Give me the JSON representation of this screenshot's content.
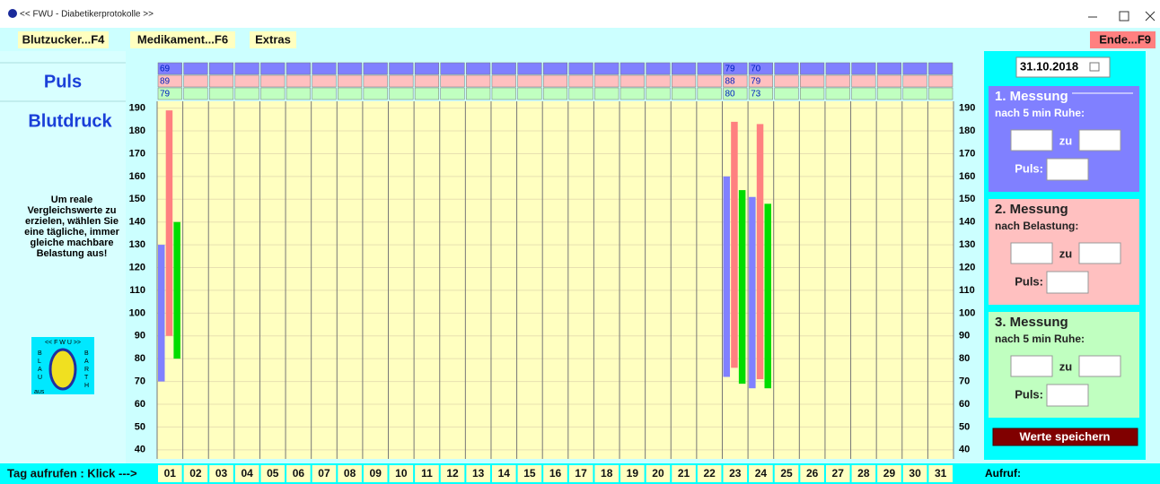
{
  "window": {
    "title": "<< FWU - Diabetikerprotokolle >>"
  },
  "menu": [
    "Blutzucker...F4",
    "Medikament...F6",
    "Extras"
  ],
  "exit_button": "Ende...F9",
  "left_panel": {
    "puls_heading": "Puls",
    "blutdruck_heading": "Blutdruck",
    "hint": [
      "Um reale",
      "Vergleichswerte zu",
      "erzielen, wählen Sie",
      "eine tägliche, immer",
      "gleiche machbare",
      "Belastung aus!"
    ],
    "logo": {
      "top": "<< F W U >>",
      "left": [
        "B",
        "L",
        "A",
        "U"
      ],
      "left_bottom": "aus",
      "right": [
        "B",
        "A",
        "R",
        "T",
        "H"
      ]
    }
  },
  "chart_data": {
    "type": "range-bar",
    "categories": [
      "01",
      "02",
      "03",
      "04",
      "05",
      "06",
      "07",
      "08",
      "09",
      "10",
      "11",
      "12",
      "13",
      "14",
      "15",
      "16",
      "17",
      "18",
      "19",
      "20",
      "21",
      "22",
      "23",
      "24",
      "25",
      "26",
      "27",
      "28",
      "29",
      "30",
      "31"
    ],
    "ylim": [
      36,
      193
    ],
    "yticks": [
      40,
      50,
      60,
      70,
      80,
      90,
      100,
      110,
      120,
      130,
      140,
      150,
      160,
      170,
      180,
      190
    ],
    "grid": true,
    "series": [
      {
        "color": "#8080ff",
        "row_color": "#8080ff",
        "low": [
          70,
          null,
          null,
          null,
          null,
          null,
          null,
          null,
          null,
          null,
          null,
          null,
          null,
          null,
          null,
          null,
          null,
          null,
          null,
          null,
          null,
          null,
          72,
          67,
          null,
          null,
          null,
          null,
          null,
          null,
          null
        ],
        "high": [
          130,
          null,
          null,
          null,
          null,
          null,
          null,
          null,
          null,
          null,
          null,
          null,
          null,
          null,
          null,
          null,
          null,
          null,
          null,
          null,
          null,
          null,
          160,
          151,
          null,
          null,
          null,
          null,
          null,
          null,
          null
        ],
        "pulse": [
          69,
          null,
          null,
          null,
          null,
          null,
          null,
          null,
          null,
          null,
          null,
          null,
          null,
          null,
          null,
          null,
          null,
          null,
          null,
          null,
          null,
          null,
          79,
          70,
          null,
          null,
          null,
          null,
          null,
          null,
          null
        ]
      },
      {
        "color": "#ff8080",
        "row_color": "#ffc0c0",
        "low": [
          90,
          null,
          null,
          null,
          null,
          null,
          null,
          null,
          null,
          null,
          null,
          null,
          null,
          null,
          null,
          null,
          null,
          null,
          null,
          null,
          null,
          null,
          76,
          71,
          null,
          null,
          null,
          null,
          null,
          null,
          null
        ],
        "high": [
          189,
          null,
          null,
          null,
          null,
          null,
          null,
          null,
          null,
          null,
          null,
          null,
          null,
          null,
          null,
          null,
          null,
          null,
          null,
          null,
          null,
          null,
          184,
          183,
          null,
          null,
          null,
          null,
          null,
          null,
          null
        ],
        "pulse": [
          89,
          null,
          null,
          null,
          null,
          null,
          null,
          null,
          null,
          null,
          null,
          null,
          null,
          null,
          null,
          null,
          null,
          null,
          null,
          null,
          null,
          null,
          88,
          79,
          null,
          null,
          null,
          null,
          null,
          null,
          null
        ]
      },
      {
        "color": "#00dd00",
        "row_color": "#c0ffc0",
        "low": [
          80,
          null,
          null,
          null,
          null,
          null,
          null,
          null,
          null,
          null,
          null,
          null,
          null,
          null,
          null,
          null,
          null,
          null,
          null,
          null,
          null,
          null,
          69,
          67,
          null,
          null,
          null,
          null,
          null,
          null,
          null
        ],
        "high": [
          140,
          null,
          null,
          null,
          null,
          null,
          null,
          null,
          null,
          null,
          null,
          null,
          null,
          null,
          null,
          null,
          null,
          null,
          null,
          null,
          null,
          null,
          154,
          148,
          null,
          null,
          null,
          null,
          null,
          null,
          null
        ],
        "pulse": [
          79,
          null,
          null,
          null,
          null,
          null,
          null,
          null,
          null,
          null,
          null,
          null,
          null,
          null,
          null,
          null,
          null,
          null,
          null,
          null,
          null,
          null,
          80,
          73,
          null,
          null,
          null,
          null,
          null,
          null,
          null
        ]
      }
    ]
  },
  "footer": {
    "label": "Tag aufrufen : Klick --->",
    "status": "Aufruf:"
  },
  "date": "31.10.2018",
  "panels": [
    {
      "title": "1. Messung",
      "subtitle": "nach 5 min Ruhe:",
      "separator": "zu",
      "pulse_label": "Puls:"
    },
    {
      "title": "2. Messung",
      "subtitle": "nach Belastung:",
      "separator": "zu",
      "pulse_label": "Puls:"
    },
    {
      "title": "3. Messung",
      "subtitle": "nach 5 min Ruhe:",
      "separator": "zu",
      "pulse_label": "Puls:"
    }
  ],
  "save_button": "Werte speichern"
}
